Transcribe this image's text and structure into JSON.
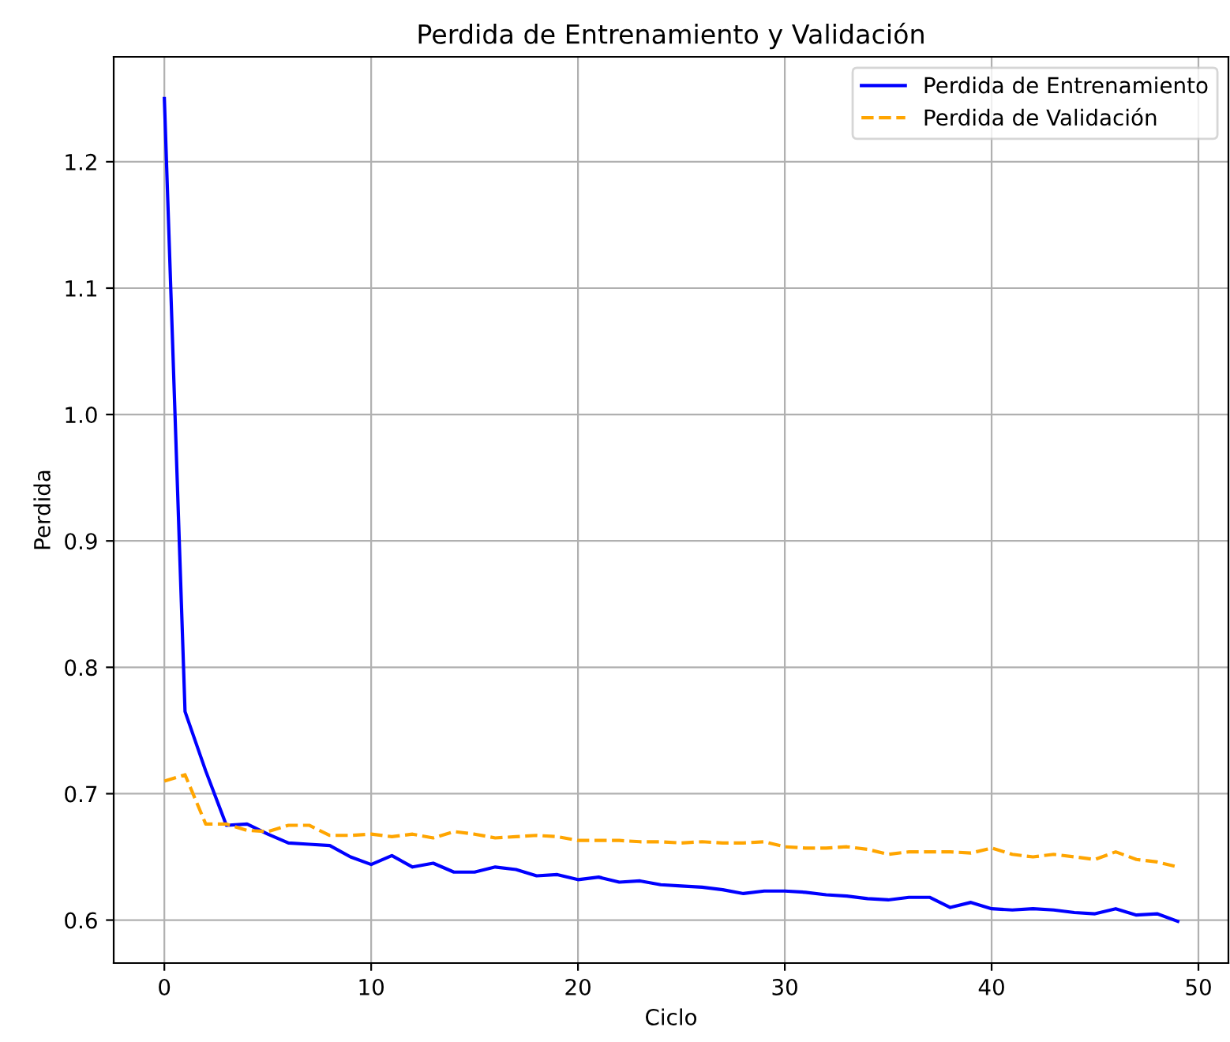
{
  "chart_data": {
    "type": "line",
    "title": "Perdida de Entrenamiento y Validación",
    "xlabel": "Ciclo",
    "ylabel": "Perdida",
    "x": [
      0,
      1,
      2,
      3,
      4,
      5,
      6,
      7,
      8,
      9,
      10,
      11,
      12,
      13,
      14,
      15,
      16,
      17,
      18,
      19,
      20,
      21,
      22,
      23,
      24,
      25,
      26,
      27,
      28,
      29,
      30,
      31,
      32,
      33,
      34,
      35,
      36,
      37,
      38,
      39,
      40,
      41,
      42,
      43,
      44,
      45,
      46,
      47,
      48,
      49
    ],
    "series": [
      {
        "name": "Perdida de Entrenamiento",
        "color": "#0000ff",
        "line_style": "solid",
        "values": [
          1.25,
          0.765,
          0.718,
          0.675,
          0.676,
          0.668,
          0.661,
          0.66,
          0.659,
          0.65,
          0.644,
          0.651,
          0.642,
          0.645,
          0.638,
          0.638,
          0.642,
          0.64,
          0.635,
          0.636,
          0.632,
          0.634,
          0.63,
          0.631,
          0.628,
          0.627,
          0.626,
          0.624,
          0.621,
          0.623,
          0.623,
          0.622,
          0.62,
          0.619,
          0.617,
          0.616,
          0.618,
          0.618,
          0.61,
          0.614,
          0.609,
          0.608,
          0.609,
          0.608,
          0.606,
          0.605,
          0.609,
          0.604,
          0.605,
          0.599
        ]
      },
      {
        "name": "Perdida de Validación",
        "color": "#ffa500",
        "line_style": "dashed",
        "values": [
          0.71,
          0.715,
          0.676,
          0.676,
          0.671,
          0.67,
          0.675,
          0.675,
          0.667,
          0.667,
          0.668,
          0.666,
          0.668,
          0.665,
          0.67,
          0.668,
          0.665,
          0.666,
          0.667,
          0.666,
          0.663,
          0.663,
          0.663,
          0.662,
          0.662,
          0.661,
          0.662,
          0.661,
          0.661,
          0.662,
          0.658,
          0.657,
          0.657,
          0.658,
          0.656,
          0.652,
          0.654,
          0.654,
          0.654,
          0.653,
          0.657,
          0.652,
          0.65,
          0.652,
          0.65,
          0.648,
          0.654,
          0.648,
          0.646,
          0.642
        ]
      }
    ],
    "xlim": [
      -2.45,
      51.45
    ],
    "ylim": [
      0.566,
      1.283
    ],
    "xticks": [
      0,
      10,
      20,
      30,
      40,
      50
    ],
    "yticks": [
      0.6,
      0.7,
      0.8,
      0.9,
      {
        "value": 1,
        "label": "1.0"
      },
      1.1,
      1.2
    ],
    "grid": true,
    "legend": "top right",
    "marker": "none"
  }
}
